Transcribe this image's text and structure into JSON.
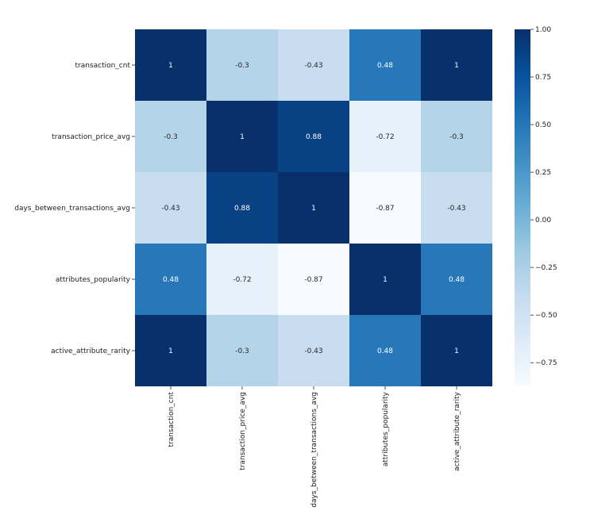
{
  "chart_data": {
    "type": "heatmap",
    "title": "",
    "rows": [
      "transaction_cnt",
      "transaction_price_avg",
      "days_between_transactions_avg",
      "attributes_popularity",
      "active_attribute_rarity"
    ],
    "columns": [
      "transaction_cnt",
      "transaction_price_avg",
      "days_between_transactions_avg",
      "attributes_popularity",
      "active_attribute_rarity"
    ],
    "values": [
      [
        1,
        -0.3,
        -0.43,
        0.48,
        1
      ],
      [
        -0.3,
        1,
        0.88,
        -0.72,
        -0.3
      ],
      [
        -0.43,
        0.88,
        1,
        -0.87,
        -0.43
      ],
      [
        0.48,
        -0.72,
        -0.87,
        1,
        0.48
      ],
      [
        1,
        -0.3,
        -0.43,
        0.48,
        1
      ]
    ],
    "cell_labels": [
      [
        "1",
        "-0.3",
        "-0.43",
        "0.48",
        "1"
      ],
      [
        "-0.3",
        "1",
        "0.88",
        "-0.72",
        "-0.3"
      ],
      [
        "-0.43",
        "0.88",
        "1",
        "-0.87",
        "-0.43"
      ],
      [
        "0.48",
        "-0.72",
        "-0.87",
        "1",
        "0.48"
      ],
      [
        "1",
        "-0.3",
        "-0.43",
        "0.48",
        "1"
      ]
    ],
    "colormap": "Blues",
    "vmin": -0.87,
    "vmax": 1.0,
    "colorbar": {
      "ticks": [
        1.0,
        0.75,
        0.5,
        0.25,
        0.0,
        -0.25,
        -0.5,
        -0.75
      ],
      "tick_labels": [
        "1.00",
        "0.75",
        "0.50",
        "0.25",
        "0.00",
        "−0.25",
        "−0.50",
        "−0.75"
      ],
      "placement": "right"
    }
  }
}
